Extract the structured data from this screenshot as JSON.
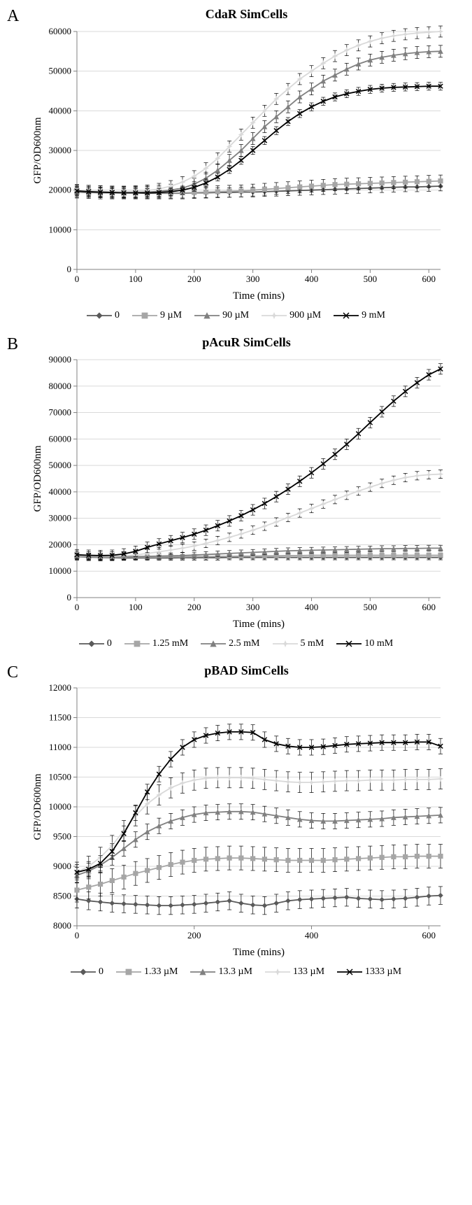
{
  "panelA": {
    "label": "A",
    "title": "CdaR SimCells",
    "type": "line",
    "xlabel": "Time (mins)",
    "ylabel": "GFP/OD600nm",
    "xlim": [
      0,
      620
    ],
    "ylim": [
      0,
      60000
    ],
    "xticks": [
      0,
      100,
      200,
      300,
      400,
      500,
      600
    ],
    "yticks": [
      0,
      10000,
      20000,
      30000,
      40000,
      50000,
      60000
    ],
    "background_color": "#ffffff",
    "grid_color": "#d9d9d9",
    "axis_color": "#808080",
    "label_fontsize": 15,
    "tick_fontsize": 13,
    "title_fontsize": 18,
    "x": [
      0,
      20,
      40,
      60,
      80,
      100,
      120,
      140,
      160,
      180,
      200,
      220,
      240,
      260,
      280,
      300,
      320,
      340,
      360,
      380,
      400,
      420,
      440,
      460,
      480,
      500,
      520,
      540,
      560,
      580,
      600,
      620
    ],
    "series": [
      {
        "name": "0",
        "color": "#5a5a5a",
        "marker": "diamond",
        "values": [
          19500,
          19400,
          19400,
          19400,
          19300,
          19300,
          19200,
          19200,
          19200,
          19200,
          19300,
          19300,
          19400,
          19400,
          19500,
          19500,
          19600,
          19700,
          19800,
          19900,
          20000,
          20100,
          20200,
          20300,
          20400,
          20500,
          20600,
          20700,
          20800,
          20800,
          20900,
          21000
        ],
        "err": 1200
      },
      {
        "name": "9 µM",
        "color": "#a6a6a6",
        "marker": "square",
        "values": [
          19800,
          19700,
          19600,
          19500,
          19400,
          19300,
          19300,
          19300,
          19300,
          19300,
          19400,
          19500,
          19600,
          19700,
          19800,
          20000,
          20200,
          20400,
          20600,
          20800,
          21000,
          21200,
          21400,
          21500,
          21600,
          21700,
          21800,
          21900,
          22000,
          22100,
          22200,
          22300
        ],
        "err": 1500
      },
      {
        "name": "90 µM",
        "color": "#808080",
        "marker": "triangle",
        "values": [
          19500,
          19400,
          19300,
          19300,
          19300,
          19400,
          19500,
          19700,
          20000,
          20500,
          21500,
          23000,
          25000,
          27500,
          30000,
          33000,
          36000,
          38500,
          41000,
          43500,
          45500,
          47500,
          49000,
          50500,
          51800,
          52800,
          53500,
          54000,
          54400,
          54700,
          54900,
          55000
        ],
        "err": 1500
      },
      {
        "name": "900 µM",
        "color": "#d9d9d9",
        "marker": "star",
        "values": [
          20000,
          19800,
          19700,
          19600,
          19600,
          19700,
          19900,
          20300,
          21000,
          22000,
          23500,
          25500,
          28000,
          31000,
          34000,
          37000,
          40000,
          43000,
          45500,
          48000,
          50000,
          52000,
          53800,
          55300,
          56500,
          57500,
          58300,
          58900,
          59300,
          59600,
          59800,
          60000
        ],
        "err": 1400
      },
      {
        "name": "9 mM",
        "color": "#000000",
        "marker": "x",
        "values": [
          19800,
          19600,
          19500,
          19400,
          19300,
          19300,
          19300,
          19400,
          19600,
          20000,
          20700,
          21800,
          23300,
          25200,
          27500,
          30000,
          32500,
          35000,
          37300,
          39300,
          41000,
          42400,
          43500,
          44300,
          44900,
          45400,
          45700,
          45900,
          46000,
          46100,
          46200,
          46200
        ],
        "err": 1000
      }
    ],
    "legend": [
      "0",
      "9 µM",
      "90 µM",
      "900 µM",
      "9 mM"
    ]
  },
  "panelB": {
    "label": "B",
    "title": "pAcuR SimCells",
    "type": "line",
    "xlabel": "Time (mins)",
    "ylabel": "GFP/OD600nm",
    "xlim": [
      0,
      620
    ],
    "ylim": [
      0,
      90000
    ],
    "xticks": [
      0,
      100,
      200,
      300,
      400,
      500,
      600
    ],
    "yticks": [
      0,
      10000,
      20000,
      30000,
      40000,
      50000,
      60000,
      70000,
      80000,
      90000
    ],
    "background_color": "#ffffff",
    "grid_color": "#d9d9d9",
    "axis_color": "#808080",
    "label_fontsize": 15,
    "tick_fontsize": 13,
    "title_fontsize": 18,
    "x": [
      0,
      20,
      40,
      60,
      80,
      100,
      120,
      140,
      160,
      180,
      200,
      220,
      240,
      260,
      280,
      300,
      320,
      340,
      360,
      380,
      400,
      420,
      440,
      460,
      480,
      500,
      520,
      540,
      560,
      580,
      600,
      620
    ],
    "series": [
      {
        "name": "0",
        "color": "#5a5a5a",
        "marker": "diamond",
        "values": [
          15500,
          15300,
          15200,
          15100,
          15000,
          15000,
          15000,
          15000,
          15000,
          15100,
          15100,
          15100,
          15100,
          15200,
          15200,
          15200,
          15200,
          15200,
          15200,
          15200,
          15200,
          15200,
          15200,
          15200,
          15200,
          15200,
          15200,
          15200,
          15200,
          15200,
          15200,
          15200
        ],
        "err": 900
      },
      {
        "name": "1.25 mM",
        "color": "#a6a6a6",
        "marker": "square",
        "values": [
          15600,
          15500,
          15400,
          15300,
          15300,
          15300,
          15300,
          15300,
          15400,
          15400,
          15500,
          15500,
          15600,
          15600,
          15700,
          15700,
          15800,
          15800,
          15900,
          15900,
          16000,
          16000,
          16000,
          16000,
          16000,
          16000,
          16000,
          16000,
          16000,
          16000,
          16000,
          16000
        ],
        "err": 900
      },
      {
        "name": "2.5 mM",
        "color": "#808080",
        "marker": "triangle",
        "values": [
          15800,
          15700,
          15600,
          15500,
          15500,
          15500,
          15600,
          15700,
          15800,
          15900,
          16100,
          16300,
          16500,
          16700,
          16900,
          17100,
          17300,
          17500,
          17700,
          17800,
          17900,
          18000,
          18100,
          18200,
          18300,
          18400,
          18500,
          18500,
          18600,
          18600,
          18700,
          18700
        ],
        "err": 1100
      },
      {
        "name": "5 mM",
        "color": "#d9d9d9",
        "marker": "star",
        "values": [
          16000,
          15800,
          15700,
          15700,
          15800,
          16100,
          16700,
          17300,
          18000,
          18700,
          19500,
          20500,
          21600,
          22800,
          24100,
          25500,
          27000,
          28600,
          30300,
          32000,
          33700,
          35400,
          37100,
          38700,
          40300,
          41800,
          43200,
          44400,
          45400,
          46100,
          46500,
          46700
        ],
        "err": 1600
      },
      {
        "name": "10 mM",
        "color": "#000000",
        "marker": "x",
        "values": [
          16200,
          16000,
          15900,
          16000,
          16500,
          17500,
          19000,
          20300,
          21500,
          22700,
          24000,
          25500,
          27200,
          29000,
          31000,
          33200,
          35600,
          38200,
          41000,
          44000,
          47200,
          50600,
          54200,
          58000,
          62000,
          66200,
          70300,
          74300,
          78000,
          81300,
          84300,
          86500
        ],
        "err": 2000
      }
    ],
    "legend": [
      "0",
      "1.25 mM",
      "2.5 mM",
      "5 mM",
      "10 mM"
    ]
  },
  "panelC": {
    "label": "C",
    "title": "pBAD SimCells",
    "type": "line",
    "xlabel": "Time (mins)",
    "ylabel": "GFP/OD600nm",
    "xlim": [
      0,
      620
    ],
    "ylim": [
      8000,
      12000
    ],
    "xticks": [
      0,
      200,
      400,
      600
    ],
    "yticks": [
      8000,
      8500,
      9000,
      9500,
      10000,
      10500,
      11000,
      11500,
      12000
    ],
    "background_color": "#ffffff",
    "grid_color": "#d9d9d9",
    "axis_color": "#808080",
    "label_fontsize": 15,
    "tick_fontsize": 13,
    "title_fontsize": 18,
    "x": [
      0,
      20,
      40,
      60,
      80,
      100,
      120,
      140,
      160,
      180,
      200,
      220,
      240,
      260,
      280,
      300,
      320,
      340,
      360,
      380,
      400,
      420,
      440,
      460,
      480,
      500,
      520,
      540,
      560,
      580,
      600,
      620
    ],
    "series": [
      {
        "name": "0",
        "color": "#5a5a5a",
        "marker": "diamond",
        "values": [
          8450,
          8420,
          8400,
          8380,
          8370,
          8360,
          8350,
          8340,
          8340,
          8350,
          8360,
          8380,
          8400,
          8420,
          8380,
          8350,
          8340,
          8380,
          8420,
          8440,
          8450,
          8460,
          8470,
          8480,
          8460,
          8450,
          8440,
          8450,
          8460,
          8480,
          8500,
          8510
        ],
        "err": 150
      },
      {
        "name": "1.33 µM",
        "color": "#a6a6a6",
        "marker": "square",
        "values": [
          8600,
          8650,
          8700,
          8760,
          8820,
          8880,
          8930,
          8980,
          9030,
          9070,
          9100,
          9120,
          9130,
          9140,
          9140,
          9130,
          9120,
          9110,
          9100,
          9100,
          9100,
          9100,
          9110,
          9120,
          9130,
          9140,
          9150,
          9160,
          9160,
          9170,
          9170,
          9170
        ],
        "err": 200
      },
      {
        "name": "13.3 µM",
        "color": "#808080",
        "marker": "triangle",
        "values": [
          8850,
          8920,
          9020,
          9150,
          9300,
          9450,
          9580,
          9680,
          9760,
          9820,
          9870,
          9900,
          9910,
          9920,
          9920,
          9910,
          9880,
          9850,
          9820,
          9790,
          9770,
          9760,
          9760,
          9770,
          9780,
          9790,
          9800,
          9820,
          9830,
          9840,
          9850,
          9860
        ],
        "err": 130
      },
      {
        "name": "133 µM",
        "color": "#d9d9d9",
        "marker": "star",
        "values": [
          8900,
          9000,
          9150,
          9350,
          9600,
          9850,
          10050,
          10200,
          10320,
          10400,
          10450,
          10480,
          10490,
          10490,
          10490,
          10480,
          10460,
          10440,
          10420,
          10410,
          10410,
          10420,
          10430,
          10440,
          10440,
          10450,
          10450,
          10450,
          10460,
          10460,
          10460,
          10470
        ],
        "err": 170
      },
      {
        "name": "1333 µM",
        "color": "#000000",
        "marker": "x",
        "values": [
          8900,
          8950,
          9050,
          9250,
          9550,
          9900,
          10250,
          10550,
          10800,
          11000,
          11130,
          11200,
          11240,
          11260,
          11260,
          11250,
          11130,
          11060,
          11020,
          11000,
          11000,
          11010,
          11030,
          11050,
          11060,
          11070,
          11080,
          11080,
          11080,
          11090,
          11090,
          11020
        ],
        "err": 130
      }
    ],
    "legend": [
      "0",
      "1.33 µM",
      "13.3 µM",
      "133 µM",
      "1333 µM"
    ]
  },
  "legend_markers": [
    "diamond",
    "square",
    "triangle",
    "star",
    "x"
  ],
  "legend_colors": [
    "#5a5a5a",
    "#a6a6a6",
    "#808080",
    "#d9d9d9",
    "#000000"
  ]
}
